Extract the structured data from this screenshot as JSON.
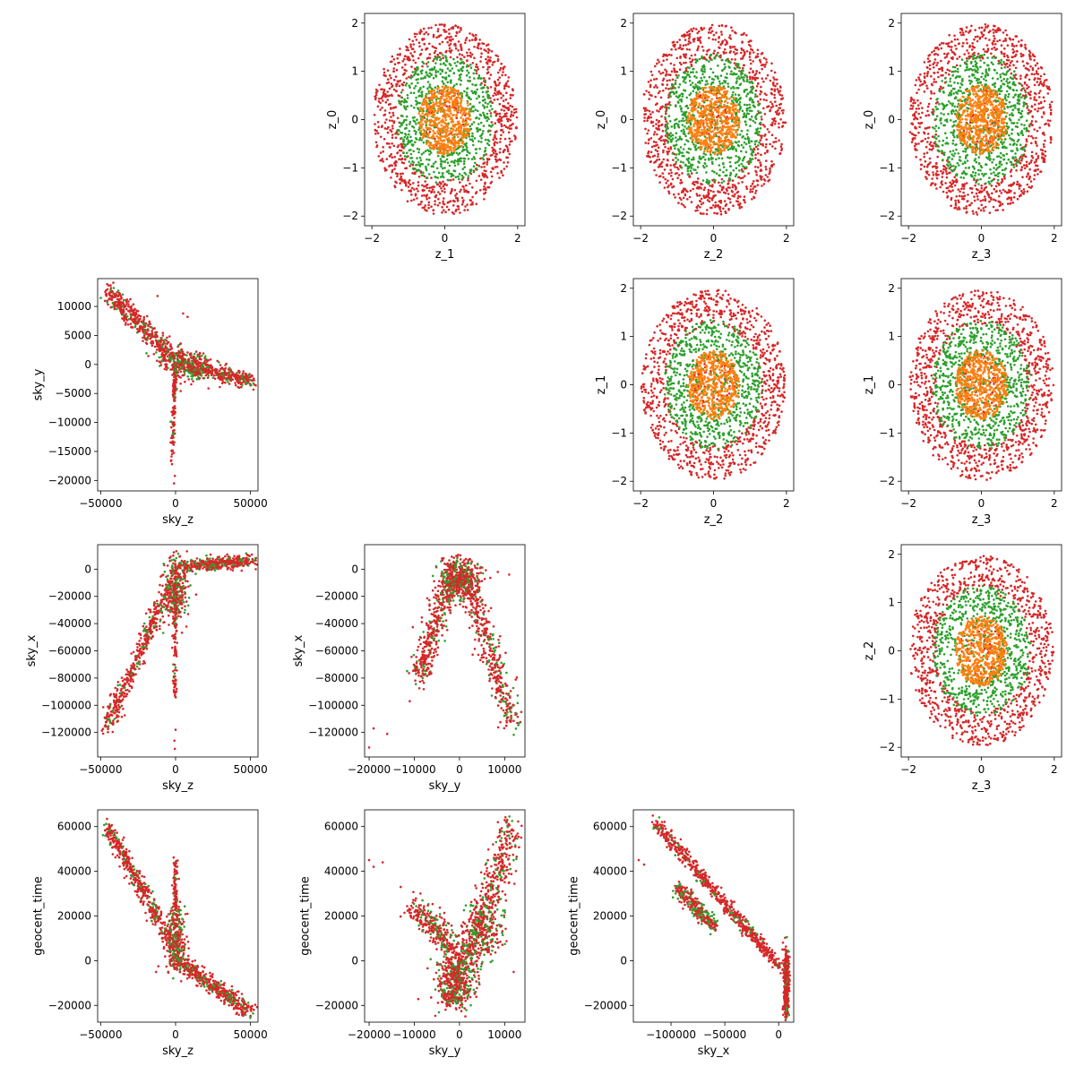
{
  "colors": {
    "orange": "#ff7f0e",
    "green": "#2ca02c",
    "red": "#d62728"
  },
  "chart_data": [
    {
      "type": "scatter",
      "row": 0,
      "col": 1,
      "xlabel": "z_1",
      "ylabel": "z_0",
      "xlim": [
        -2.2,
        2.2
      ],
      "ylim": [
        -2.2,
        2.2
      ],
      "xticks": [
        -2,
        0,
        2
      ],
      "yticks": [
        -2,
        -1,
        0,
        1,
        2
      ],
      "gen": "gauss"
    },
    {
      "type": "scatter",
      "row": 0,
      "col": 2,
      "xlabel": "z_2",
      "ylabel": "z_0",
      "xlim": [
        -2.2,
        2.2
      ],
      "ylim": [
        -2.2,
        2.2
      ],
      "xticks": [
        -2,
        0,
        2
      ],
      "yticks": [
        -2,
        -1,
        0,
        1,
        2
      ],
      "gen": "gauss"
    },
    {
      "type": "scatter",
      "row": 0,
      "col": 3,
      "xlabel": "z_3",
      "ylabel": "z_0",
      "xlim": [
        -2.2,
        2.2
      ],
      "ylim": [
        -2.2,
        2.2
      ],
      "xticks": [
        -2,
        0,
        2
      ],
      "yticks": [
        -2,
        -1,
        0,
        1,
        2
      ],
      "gen": "gauss"
    },
    {
      "type": "scatter",
      "row": 1,
      "col": 0,
      "xlabel": "sky_z",
      "ylabel": "sky_y",
      "xlim": [
        -52000,
        55000
      ],
      "ylim": [
        -21800,
        14800
      ],
      "xticks": [
        -50000,
        0,
        50000
      ],
      "yticks": [
        -20000,
        -15000,
        -10000,
        -5000,
        0,
        5000,
        10000
      ],
      "gen": "sky_zy"
    },
    {
      "type": "scatter",
      "row": 1,
      "col": 2,
      "xlabel": "z_2",
      "ylabel": "z_1",
      "xlim": [
        -2.2,
        2.2
      ],
      "ylim": [
        -2.2,
        2.2
      ],
      "xticks": [
        -2,
        0,
        2
      ],
      "yticks": [
        -2,
        -1,
        0,
        1,
        2
      ],
      "gen": "gauss"
    },
    {
      "type": "scatter",
      "row": 1,
      "col": 3,
      "xlabel": "z_3",
      "ylabel": "z_1",
      "xlim": [
        -2.2,
        2.2
      ],
      "ylim": [
        -2.2,
        2.2
      ],
      "xticks": [
        -2,
        0,
        2
      ],
      "yticks": [
        -2,
        -1,
        0,
        1,
        2
      ],
      "gen": "gauss"
    },
    {
      "type": "scatter",
      "row": 2,
      "col": 0,
      "xlabel": "sky_z",
      "ylabel": "sky_x",
      "xlim": [
        -52000,
        55000
      ],
      "ylim": [
        -138000,
        18000
      ],
      "xticks": [
        -50000,
        0,
        50000
      ],
      "yticks": [
        -120000,
        -100000,
        -80000,
        -60000,
        -40000,
        -20000,
        0
      ],
      "gen": "sky_zx"
    },
    {
      "type": "scatter",
      "row": 2,
      "col": 1,
      "xlabel": "sky_y",
      "ylabel": "sky_x",
      "xlim": [
        -21000,
        14500
      ],
      "ylim": [
        -138000,
        18000
      ],
      "xticks": [
        -20000,
        -10000,
        0,
        10000
      ],
      "yticks": [
        -120000,
        -100000,
        -80000,
        -60000,
        -40000,
        -20000,
        0
      ],
      "gen": "sky_yx"
    },
    {
      "type": "scatter",
      "row": 2,
      "col": 3,
      "xlabel": "z_3",
      "ylabel": "z_2",
      "xlim": [
        -2.2,
        2.2
      ],
      "ylim": [
        -2.2,
        2.2
      ],
      "xticks": [
        -2,
        0,
        2
      ],
      "yticks": [
        -2,
        -1,
        0,
        1,
        2
      ],
      "gen": "gauss"
    },
    {
      "type": "scatter",
      "row": 3,
      "col": 0,
      "xlabel": "sky_z",
      "ylabel": "geocent_time",
      "xlim": [
        -52000,
        55000
      ],
      "ylim": [
        -27500,
        67500
      ],
      "xticks": [
        -50000,
        0,
        50000
      ],
      "yticks": [
        -20000,
        0,
        20000,
        40000,
        60000
      ],
      "gen": "sky_zt"
    },
    {
      "type": "scatter",
      "row": 3,
      "col": 1,
      "xlabel": "sky_y",
      "ylabel": "geocent_time",
      "xlim": [
        -21000,
        14500
      ],
      "ylim": [
        -27500,
        67500
      ],
      "xticks": [
        -20000,
        -10000,
        0,
        10000
      ],
      "yticks": [
        -20000,
        0,
        20000,
        40000,
        60000
      ],
      "gen": "sky_yt"
    },
    {
      "type": "scatter",
      "row": 3,
      "col": 2,
      "xlabel": "sky_x",
      "ylabel": "geocent_time",
      "xlim": [
        -135000,
        14000
      ],
      "ylim": [
        -27500,
        67500
      ],
      "xticks": [
        -100000,
        -50000,
        0
      ],
      "yticks": [
        -20000,
        0,
        20000,
        40000,
        60000
      ],
      "gen": "sky_xt"
    }
  ]
}
